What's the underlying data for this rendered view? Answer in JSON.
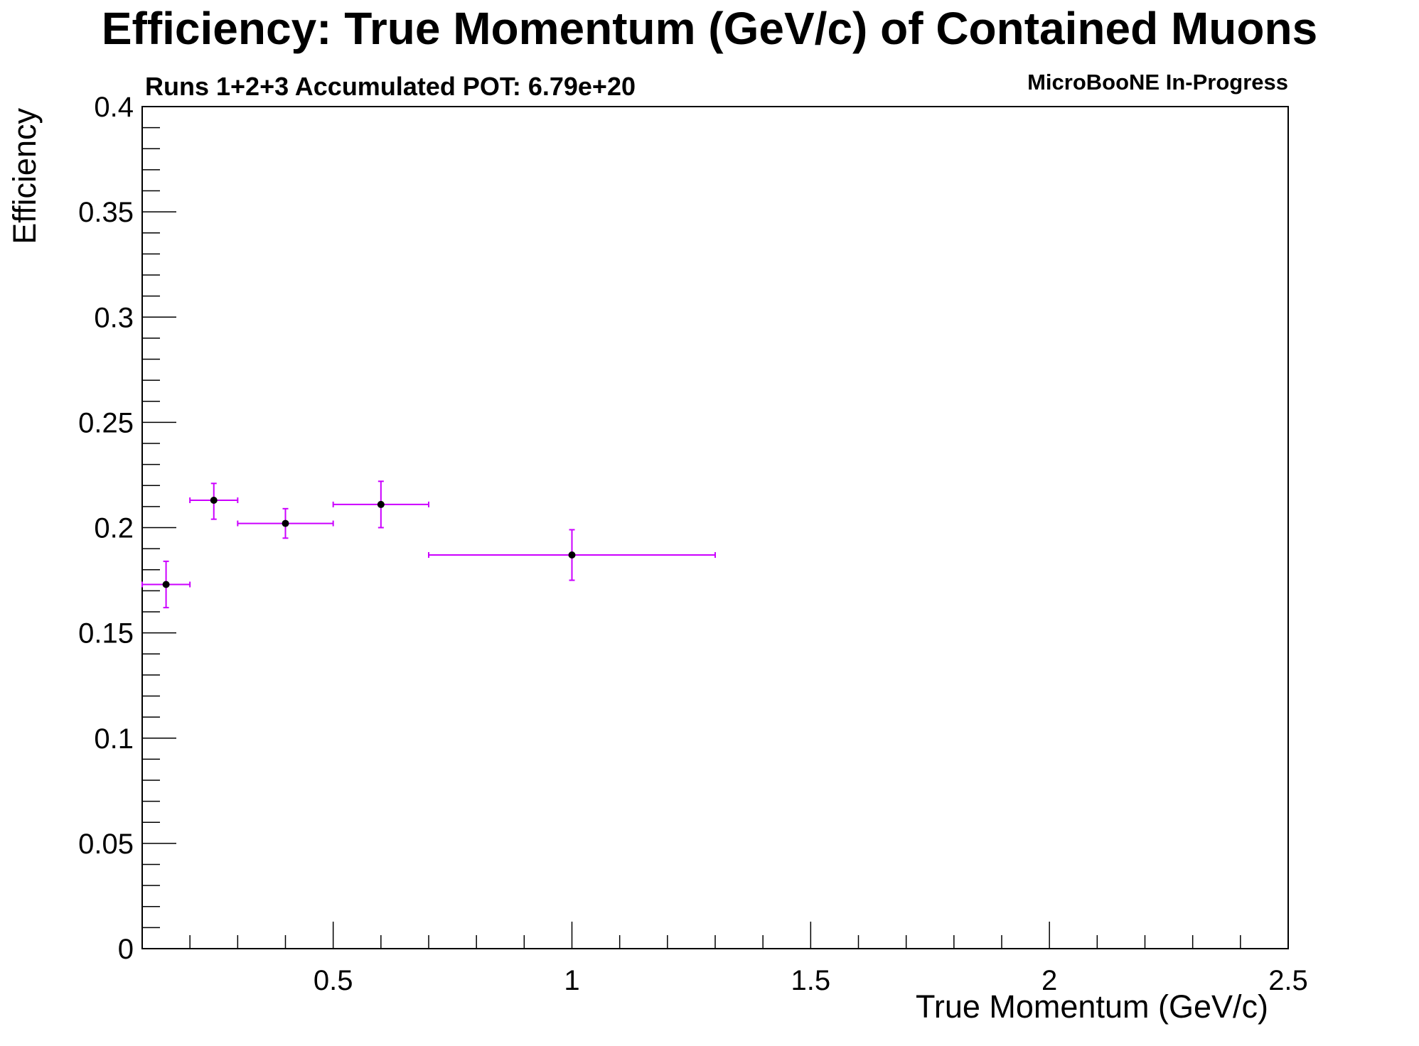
{
  "chart_data": {
    "type": "scatter",
    "title": "Efficiency: True Momentum (GeV/c) of Contained Muons",
    "subtitle": "Runs 1+2+3 Accumulated POT: 6.79e+20",
    "tag": "MicroBooNE In-Progress",
    "xlabel": "True Momentum (GeV/c)",
    "ylabel": "Efficiency",
    "xlim": [
      0.0,
      2.5
    ],
    "ylim": [
      0,
      0.4
    ],
    "x_ticks": [
      "0.5",
      "1",
      "1.5",
      "2",
      "2.5"
    ],
    "y_ticks": [
      "0",
      "0.05",
      "0.1",
      "0.15",
      "0.2",
      "0.25",
      "0.3",
      "0.35",
      "0.4"
    ],
    "grid": false,
    "legend": "none",
    "series": [
      {
        "color": "#cc00ff",
        "marker_color": "#000000",
        "points": [
          {
            "x": 0.15,
            "xlow": 0.1,
            "xhigh": 0.2,
            "y": 0.173,
            "ylow": 0.162,
            "yhigh": 0.184
          },
          {
            "x": 0.25,
            "xlow": 0.2,
            "xhigh": 0.3,
            "y": 0.213,
            "ylow": 0.204,
            "yhigh": 0.221
          },
          {
            "x": 0.4,
            "xlow": 0.3,
            "xhigh": 0.5,
            "y": 0.202,
            "ylow": 0.195,
            "yhigh": 0.209
          },
          {
            "x": 0.6,
            "xlow": 0.5,
            "xhigh": 0.7,
            "y": 0.211,
            "ylow": 0.2,
            "yhigh": 0.222
          },
          {
            "x": 1.0,
            "xlow": 0.7,
            "xhigh": 1.3,
            "y": 0.187,
            "ylow": 0.175,
            "yhigh": 0.199
          }
        ]
      }
    ]
  }
}
